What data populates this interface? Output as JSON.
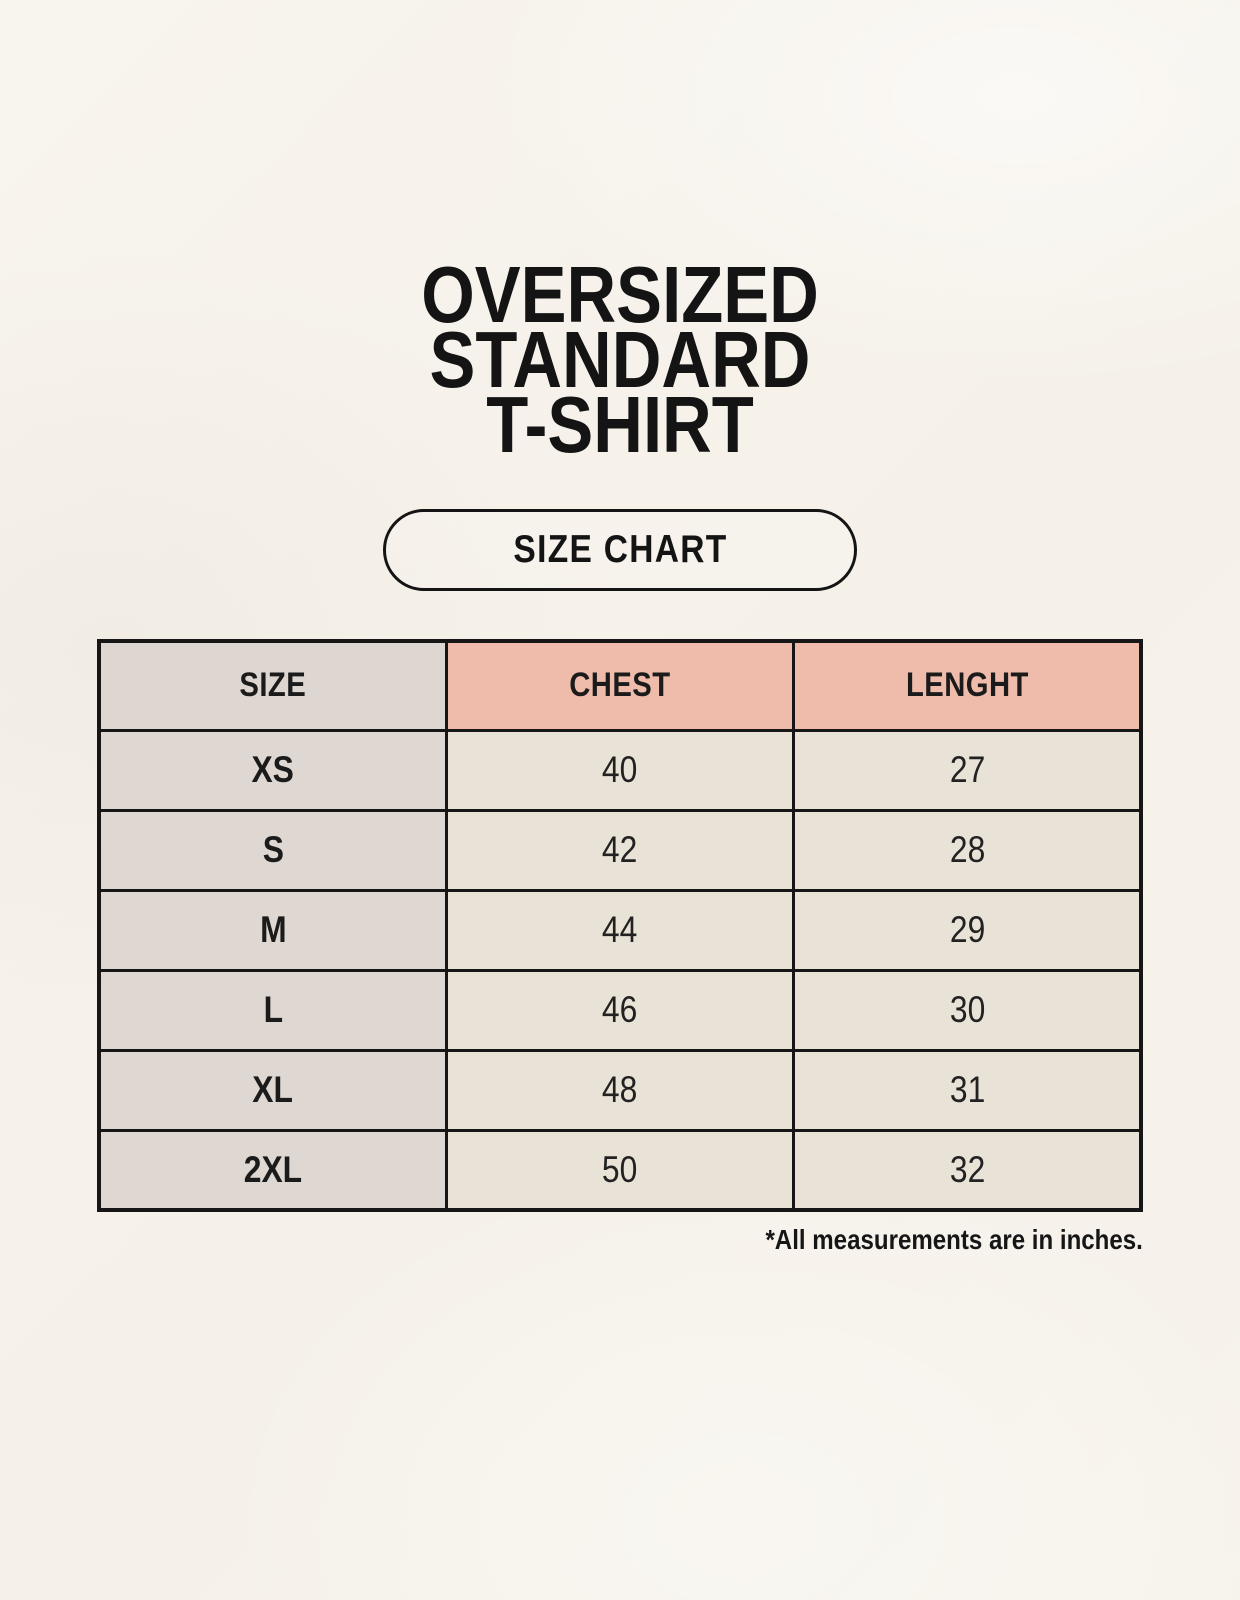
{
  "page": {
    "background_color": "#f6f2ea",
    "text_color": "#1b1b1b"
  },
  "header": {
    "title_lines": [
      "OVERSIZED",
      "STANDARD",
      "T-SHIRT"
    ],
    "badge_label": "SIZE CHART"
  },
  "table": {
    "columns": [
      "SIZE",
      "CHEST",
      "LENGHT"
    ],
    "rows": [
      {
        "size": "XS",
        "chest": "40",
        "lenght": "27"
      },
      {
        "size": "S",
        "chest": "42",
        "lenght": "28"
      },
      {
        "size": "M",
        "chest": "44",
        "lenght": "29"
      },
      {
        "size": "L",
        "chest": "46",
        "lenght": "30"
      },
      {
        "size": "XL",
        "chest": "48",
        "lenght": "31"
      },
      {
        "size": "2XL",
        "chest": "50",
        "lenght": "32"
      }
    ],
    "footnote": "*All measurements are in inches."
  },
  "colors": {
    "header_size_bg": "#ded6d1",
    "header_accent_bg": "#efbcab",
    "row_label_bg": "#ded7d2",
    "row_value_bg": "#e9e2d6",
    "table_border": "#161616"
  },
  "chart_data": {
    "type": "table",
    "title": "OVERSIZED STANDARD T-SHIRT",
    "subtitle": "SIZE CHART",
    "columns": [
      "SIZE",
      "CHEST",
      "LENGHT"
    ],
    "rows": [
      [
        "XS",
        40,
        27
      ],
      [
        "S",
        42,
        28
      ],
      [
        "M",
        44,
        29
      ],
      [
        "L",
        46,
        30
      ],
      [
        "XL",
        48,
        31
      ],
      [
        "2XL",
        50,
        32
      ]
    ],
    "footnote": "*All measurements are in inches."
  }
}
